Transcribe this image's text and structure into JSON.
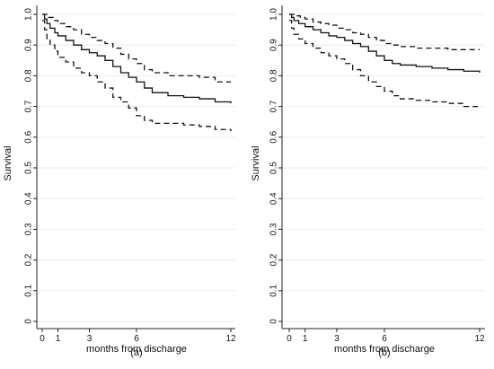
{
  "chart_data": [
    {
      "type": "line",
      "panel_label": "(a)",
      "xlabel": "months from discharge",
      "ylabel": "Survival",
      "xlim": [
        0,
        12
      ],
      "ylim": [
        0,
        1
      ],
      "x_ticks": [
        0,
        1,
        3,
        6,
        12
      ],
      "y_ticks": [
        0,
        0.1,
        0.2,
        0.3,
        0.4,
        0.5,
        0.6,
        0.7,
        0.8,
        0.9,
        1.0
      ],
      "y_tick_labels": [
        "0",
        "0.1",
        "0.2",
        "0.3",
        "0.4",
        "0.5",
        "0.6",
        "0.7",
        "0.8",
        "0.9",
        "1.0"
      ],
      "grid": "horizontal",
      "series": [
        {
          "line_style": "solid",
          "x": [
            0,
            0.15,
            0.3,
            0.5,
            0.8,
            1.0,
            1.5,
            2.0,
            2.5,
            3.0,
            3.5,
            4.0,
            4.5,
            5.0,
            5.5,
            6.0,
            6.5,
            7.0,
            8.0,
            9.0,
            10.0,
            11.0,
            12.0
          ],
          "y": [
            1.0,
            0.985,
            0.97,
            0.955,
            0.94,
            0.93,
            0.915,
            0.9,
            0.885,
            0.875,
            0.865,
            0.85,
            0.83,
            0.81,
            0.795,
            0.78,
            0.76,
            0.745,
            0.735,
            0.73,
            0.725,
            0.715,
            0.71
          ]
        },
        {
          "line_style": "dashed",
          "x": [
            0,
            0.3,
            0.7,
            1.0,
            1.5,
            2.0,
            2.5,
            3.0,
            3.5,
            4.0,
            4.5,
            5.0,
            5.5,
            6.0,
            6.5,
            7.0,
            8.0,
            9.0,
            10.0,
            11.0,
            12.0
          ],
          "y": [
            1.0,
            0.99,
            0.98,
            0.97,
            0.96,
            0.95,
            0.935,
            0.925,
            0.915,
            0.905,
            0.89,
            0.87,
            0.855,
            0.84,
            0.82,
            0.81,
            0.8,
            0.8,
            0.795,
            0.78,
            0.78
          ]
        },
        {
          "line_style": "dashed",
          "x": [
            0,
            0.15,
            0.3,
            0.5,
            0.8,
            1.0,
            1.5,
            2.0,
            2.5,
            3.0,
            3.5,
            4.0,
            4.5,
            5.0,
            5.5,
            6.0,
            6.5,
            7.0,
            8.0,
            9.0,
            10.0,
            11.0,
            12.0
          ],
          "y": [
            0.98,
            0.95,
            0.92,
            0.9,
            0.88,
            0.86,
            0.845,
            0.825,
            0.81,
            0.8,
            0.78,
            0.76,
            0.73,
            0.715,
            0.695,
            0.67,
            0.655,
            0.645,
            0.645,
            0.64,
            0.635,
            0.625,
            0.62
          ]
        }
      ]
    },
    {
      "type": "line",
      "panel_label": "(b)",
      "xlabel": "months from discharge",
      "ylabel": "Survival",
      "xlim": [
        0,
        12
      ],
      "ylim": [
        0,
        1
      ],
      "x_ticks": [
        0,
        1,
        3,
        6,
        12
      ],
      "y_ticks": [
        0,
        0.1,
        0.2,
        0.3,
        0.4,
        0.5,
        0.6,
        0.7,
        0.8,
        0.9,
        1.0
      ],
      "y_tick_labels": [
        "0",
        "0.1",
        "0.2",
        "0.3",
        "0.4",
        "0.5",
        "0.6",
        "0.7",
        "0.8",
        "0.9",
        "1.0"
      ],
      "grid": "horizontal",
      "series": [
        {
          "line_style": "solid",
          "x": [
            0,
            0.15,
            0.3,
            0.6,
            1.0,
            1.5,
            2.0,
            2.5,
            3.0,
            3.5,
            4.0,
            4.5,
            5.0,
            5.5,
            6.0,
            6.5,
            7.0,
            8.0,
            9.0,
            10.0,
            11.0,
            12.0
          ],
          "y": [
            1.0,
            0.99,
            0.98,
            0.97,
            0.96,
            0.95,
            0.94,
            0.93,
            0.925,
            0.915,
            0.905,
            0.895,
            0.88,
            0.865,
            0.85,
            0.84,
            0.835,
            0.83,
            0.825,
            0.82,
            0.815,
            0.81
          ]
        },
        {
          "line_style": "dashed",
          "x": [
            0,
            0.3,
            0.7,
            1.0,
            1.5,
            2.0,
            2.5,
            3.0,
            3.5,
            4.0,
            4.5,
            5.0,
            5.5,
            6.0,
            6.5,
            7.0,
            8.0,
            9.0,
            10.0,
            11.0,
            12.0
          ],
          "y": [
            1.0,
            0.995,
            0.99,
            0.985,
            0.975,
            0.97,
            0.965,
            0.955,
            0.95,
            0.94,
            0.935,
            0.925,
            0.915,
            0.905,
            0.9,
            0.895,
            0.89,
            0.89,
            0.885,
            0.885,
            0.885
          ]
        },
        {
          "line_style": "dashed",
          "x": [
            0,
            0.15,
            0.3,
            0.6,
            1.0,
            1.5,
            2.0,
            2.5,
            3.0,
            3.5,
            4.0,
            4.5,
            5.0,
            5.5,
            6.0,
            6.5,
            7.0,
            8.0,
            9.0,
            10.0,
            11.0,
            12.0
          ],
          "y": [
            0.98,
            0.955,
            0.935,
            0.92,
            0.905,
            0.89,
            0.875,
            0.865,
            0.855,
            0.84,
            0.82,
            0.8,
            0.78,
            0.765,
            0.75,
            0.735,
            0.725,
            0.72,
            0.715,
            0.71,
            0.7,
            0.7
          ]
        }
      ]
    }
  ]
}
